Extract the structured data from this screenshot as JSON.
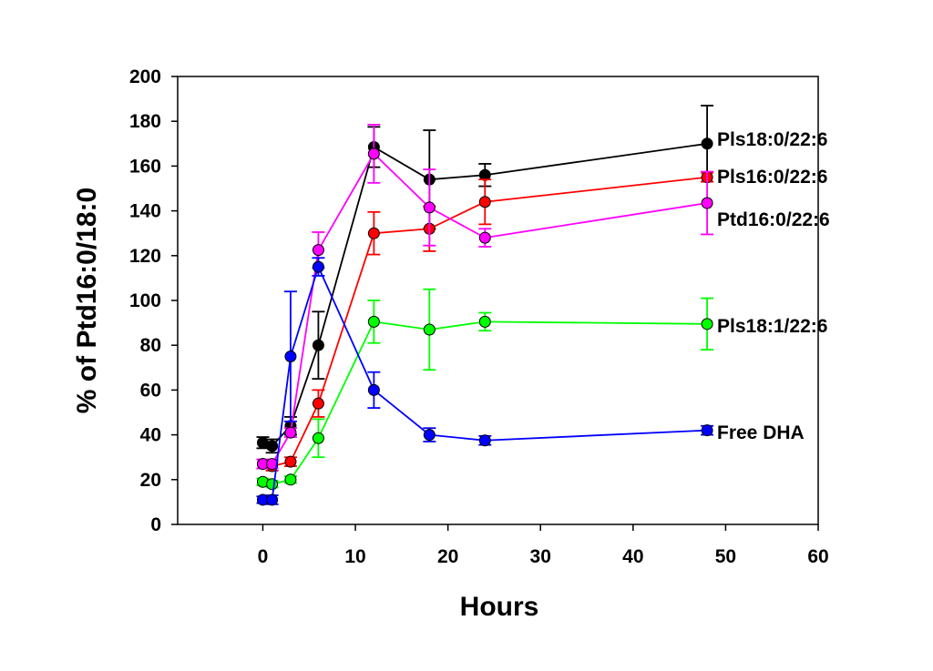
{
  "chart_data": {
    "type": "line",
    "title": "",
    "xlabel": "Hours",
    "ylabel": "% of Ptd16:0/18:0",
    "xlim": [
      -9.2,
      60
    ],
    "ylim": [
      0,
      200
    ],
    "xticks": [
      0,
      10,
      20,
      30,
      40,
      50,
      60
    ],
    "yticks": [
      0,
      20,
      40,
      60,
      80,
      100,
      120,
      140,
      160,
      180,
      200
    ],
    "grid": false,
    "legend": "inline-right",
    "x": [
      0,
      1,
      3,
      6,
      12,
      18,
      24,
      48
    ],
    "series": [
      {
        "name": "Pls18:0/22:6",
        "color": "#000000",
        "values": [
          36.5,
          35,
          44,
          80,
          168.5,
          154,
          156,
          170
        ],
        "errors": [
          2.5,
          3,
          4,
          15,
          9,
          22,
          5,
          17
        ]
      },
      {
        "name": "Pls16:0/22:6",
        "color": "#ff0000",
        "values": [
          27,
          26,
          28,
          54,
          130,
          132,
          144,
          155
        ],
        "errors": [
          2,
          2,
          2,
          6,
          9.5,
          10,
          10,
          2
        ]
      },
      {
        "name": "Ptd16:0/22:6",
        "color": "#ff00ff",
        "values": [
          27,
          27,
          41,
          122.5,
          165.5,
          141.5,
          128,
          143.5
        ],
        "errors": [
          2,
          2,
          2,
          8,
          13,
          17,
          4,
          14
        ]
      },
      {
        "name": "Pls18:1/22:6",
        "color": "#00ff00",
        "values": [
          19,
          18,
          20,
          38.5,
          90.5,
          87,
          90.5,
          89.5
        ],
        "errors": [
          1.5,
          1.5,
          1.5,
          8.5,
          9.5,
          18,
          4,
          11.5
        ]
      },
      {
        "name": "Free DHA",
        "color": "#0000ff",
        "values": [
          11,
          11,
          75,
          115,
          60,
          40,
          37.5,
          42
        ],
        "errors": [
          1.5,
          2,
          29,
          4,
          8,
          3,
          2,
          2
        ]
      }
    ]
  }
}
